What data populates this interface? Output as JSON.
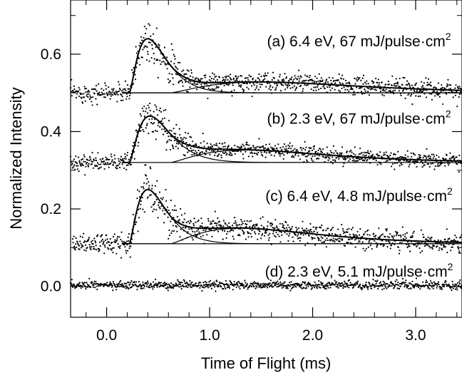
{
  "chart_data": {
    "type": "scatter",
    "title": "",
    "xlabel": "Time of Flight (ms)",
    "ylabel": "Normalized Intensity",
    "xlim": [
      -0.35,
      3.45
    ],
    "ylim": [
      -0.08,
      0.74
    ],
    "x_ticks": [
      0.0,
      1.0,
      2.0,
      3.0
    ],
    "x_tick_labels": [
      "0.0",
      "1.0",
      "2.0",
      "3.0"
    ],
    "y_ticks": [
      0.0,
      0.2,
      0.4,
      0.6
    ],
    "y_tick_labels": [
      "0.0",
      "0.2",
      "0.4",
      "0.6"
    ],
    "grid": false,
    "legend": "none",
    "series": [
      {
        "label_main": "(a) 6.4 eV, 67 mJ/pulse·cm",
        "label_sup": "2",
        "baseline": 0.5,
        "onset_ms": 0.22,
        "peak_ms": 0.4,
        "peak_height": 0.14,
        "slow_height": 0.028,
        "slow_peak_ms": 1.5,
        "noise": 0.012,
        "pre_start_ms": -0.35
      },
      {
        "label_main": "(b) 2.3 eV, 67 mJ/pulse·cm",
        "label_sup": "2",
        "baseline": 0.32,
        "onset_ms": 0.22,
        "peak_ms": 0.42,
        "peak_height": 0.12,
        "slow_height": 0.032,
        "slow_peak_ms": 1.35,
        "noise": 0.01,
        "pre_start_ms": -0.35
      },
      {
        "label_main": "(c) 6.4 eV, 4.8 mJ/pulse·cm",
        "label_sup": "2",
        "baseline": 0.11,
        "onset_ms": 0.22,
        "peak_ms": 0.4,
        "peak_height": 0.14,
        "slow_height": 0.04,
        "slow_peak_ms": 1.3,
        "noise": 0.013,
        "pre_start_ms": -0.33
      },
      {
        "label_main": "(d) 2.3 eV, 5.1 mJ/pulse·cm",
        "label_sup": "2",
        "baseline": 0.003,
        "onset_ms": 0.22,
        "peak_ms": 0.4,
        "peak_height": 0.0,
        "slow_height": 0.0,
        "slow_peak_ms": 1.3,
        "noise": 0.005,
        "pre_start_ms": -0.35
      }
    ],
    "color": "#000000"
  }
}
